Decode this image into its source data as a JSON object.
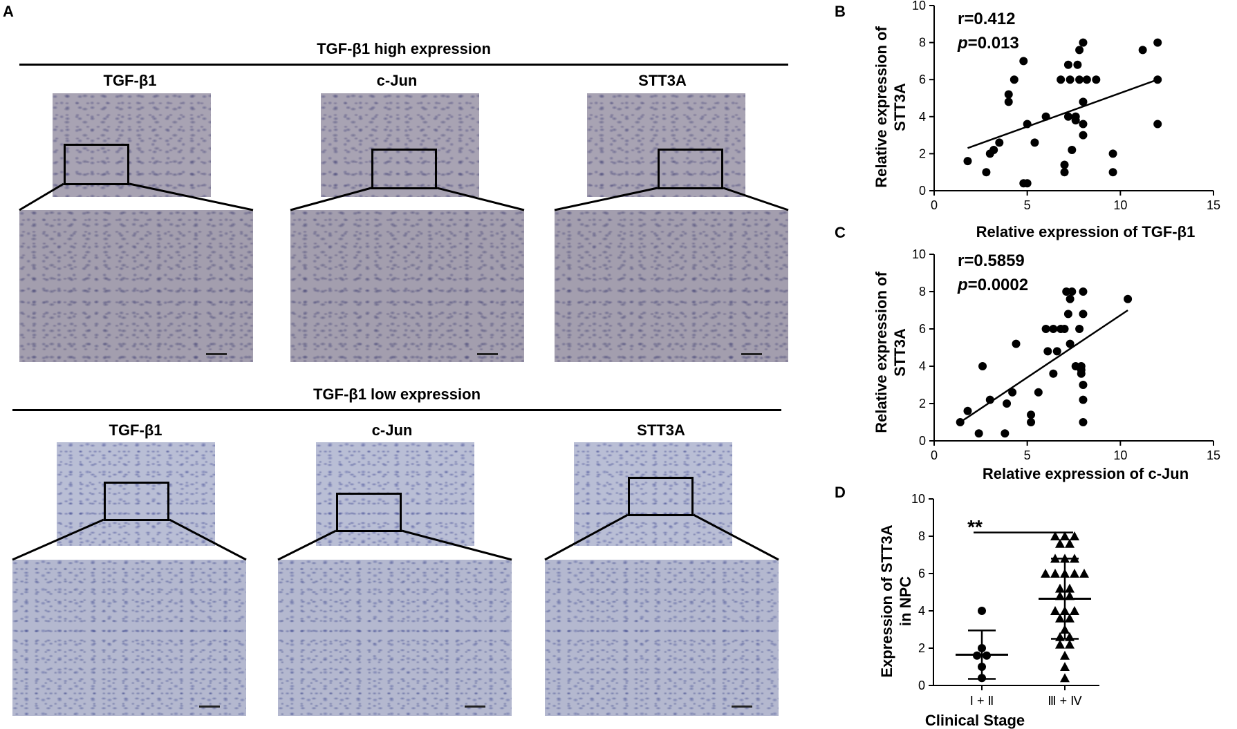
{
  "panel_labels": {
    "a": "A",
    "b": "B",
    "c": "C",
    "d": "D"
  },
  "panel_a": {
    "high_title": "TGF-β1 high expression",
    "low_title": "TGF-β1 low expression",
    "stains_high": [
      "TGF-β1",
      "c-Jun",
      "STT3A"
    ],
    "stains_low": [
      "TGF-β1",
      "c-Jun",
      "STT3A"
    ]
  },
  "chart_data": [
    {
      "id": "B",
      "type": "scatter",
      "xlabel": "Relative expression of TGF-β1",
      "ylabel": "Relative expression of STT3A",
      "xlim": [
        0,
        15
      ],
      "ylim": [
        0,
        10
      ],
      "xticks": [
        0,
        5,
        10,
        15
      ],
      "yticks": [
        0,
        2,
        4,
        6,
        8,
        10
      ],
      "annotation_r": "r=0.412",
      "annotation_p": "=0.013",
      "p_symbol": "p",
      "points": [
        [
          1.8,
          1.6
        ],
        [
          2.8,
          1.0
        ],
        [
          3.0,
          2.0
        ],
        [
          3.2,
          2.2
        ],
        [
          3.5,
          2.6
        ],
        [
          4.0,
          5.2
        ],
        [
          4.0,
          4.8
        ],
        [
          4.3,
          6.0
        ],
        [
          4.8,
          7.0
        ],
        [
          4.8,
          0.4
        ],
        [
          5.0,
          0.4
        ],
        [
          5.0,
          3.6
        ],
        [
          5.4,
          2.6
        ],
        [
          6.0,
          4.0
        ],
        [
          6.8,
          6.0
        ],
        [
          7.0,
          1.4
        ],
        [
          7.0,
          1.0
        ],
        [
          7.2,
          6.8
        ],
        [
          7.2,
          4.0
        ],
        [
          7.3,
          6.0
        ],
        [
          7.4,
          2.2
        ],
        [
          7.6,
          4.0
        ],
        [
          7.6,
          3.8
        ],
        [
          7.7,
          6.8
        ],
        [
          7.8,
          7.6
        ],
        [
          7.8,
          6.0
        ],
        [
          8.0,
          8.0
        ],
        [
          8.0,
          4.8
        ],
        [
          8.0,
          3.6
        ],
        [
          8.0,
          3.0
        ],
        [
          8.2,
          6.0
        ],
        [
          8.7,
          6.0
        ],
        [
          9.6,
          2.0
        ],
        [
          9.6,
          1.0
        ],
        [
          11.2,
          7.6
        ],
        [
          12.0,
          8.0
        ],
        [
          12.0,
          6.0
        ],
        [
          12.0,
          3.6
        ]
      ],
      "fit_line": [
        [
          1.8,
          2.3
        ],
        [
          12.0,
          6.0
        ]
      ]
    },
    {
      "id": "C",
      "type": "scatter",
      "xlabel": "Relative expression of c-Jun",
      "ylabel": "Relative expression of STT3A",
      "xlim": [
        0,
        15
      ],
      "ylim": [
        0,
        10
      ],
      "xticks": [
        0,
        5,
        10,
        15
      ],
      "yticks": [
        0,
        2,
        4,
        6,
        8,
        10
      ],
      "annotation_r": "r=0.5859",
      "annotation_p": "=0.0002",
      "p_symbol": "p",
      "points": [
        [
          1.4,
          1.0
        ],
        [
          1.8,
          1.6
        ],
        [
          2.4,
          0.4
        ],
        [
          2.6,
          4.0
        ],
        [
          3.0,
          2.2
        ],
        [
          3.8,
          0.4
        ],
        [
          3.9,
          2.0
        ],
        [
          4.2,
          2.6
        ],
        [
          4.4,
          5.2
        ],
        [
          5.2,
          1.4
        ],
        [
          5.2,
          1.0
        ],
        [
          5.6,
          2.6
        ],
        [
          6.0,
          6.0
        ],
        [
          6.1,
          4.8
        ],
        [
          6.4,
          3.6
        ],
        [
          6.4,
          6.0
        ],
        [
          6.6,
          4.8
        ],
        [
          6.8,
          6.0
        ],
        [
          7.0,
          6.0
        ],
        [
          7.1,
          8.0
        ],
        [
          7.2,
          6.8
        ],
        [
          7.3,
          5.2
        ],
        [
          7.3,
          7.6
        ],
        [
          7.4,
          8.0
        ],
        [
          7.6,
          4.0
        ],
        [
          7.8,
          6.0
        ],
        [
          7.9,
          3.6
        ],
        [
          7.9,
          4.0
        ],
        [
          7.9,
          3.8
        ],
        [
          8.0,
          3.0
        ],
        [
          8.0,
          2.2
        ],
        [
          8.0,
          1.0
        ],
        [
          8.0,
          8.0
        ],
        [
          8.0,
          6.8
        ],
        [
          10.4,
          7.6
        ]
      ],
      "fit_line": [
        [
          1.4,
          1.0
        ],
        [
          10.4,
          7.0
        ]
      ]
    },
    {
      "id": "D",
      "type": "scatter",
      "xlabel": "Clinical Stage",
      "ylabel": "Expression of STT3A in NPC",
      "ylim": [
        0,
        10
      ],
      "yticks": [
        0,
        2,
        4,
        6,
        8,
        10
      ],
      "categories": [
        "Ⅰ + Ⅱ",
        "Ⅲ + Ⅳ"
      ],
      "significance": "**",
      "groups": [
        {
          "category": "Ⅰ + Ⅱ",
          "marker": "circle",
          "mean": 1.65,
          "sd_low": 0.35,
          "sd_high": 2.95,
          "values": [
            4.0,
            2.0,
            1.6,
            1.6,
            1.0,
            0.4
          ]
        },
        {
          "category": "Ⅲ + Ⅳ",
          "marker": "triangle",
          "mean": 4.65,
          "sd_low": 2.5,
          "sd_high": 6.8,
          "values": [
            8.0,
            8.0,
            8.0,
            7.6,
            7.6,
            6.8,
            6.8,
            6.8,
            6.0,
            6.0,
            6.0,
            6.0,
            6.0,
            5.2,
            5.2,
            4.8,
            4.8,
            4.0,
            4.0,
            4.0,
            3.6,
            3.6,
            3.0,
            2.6,
            2.6,
            2.2,
            2.2,
            1.6,
            1.0,
            0.4
          ]
        }
      ]
    }
  ]
}
